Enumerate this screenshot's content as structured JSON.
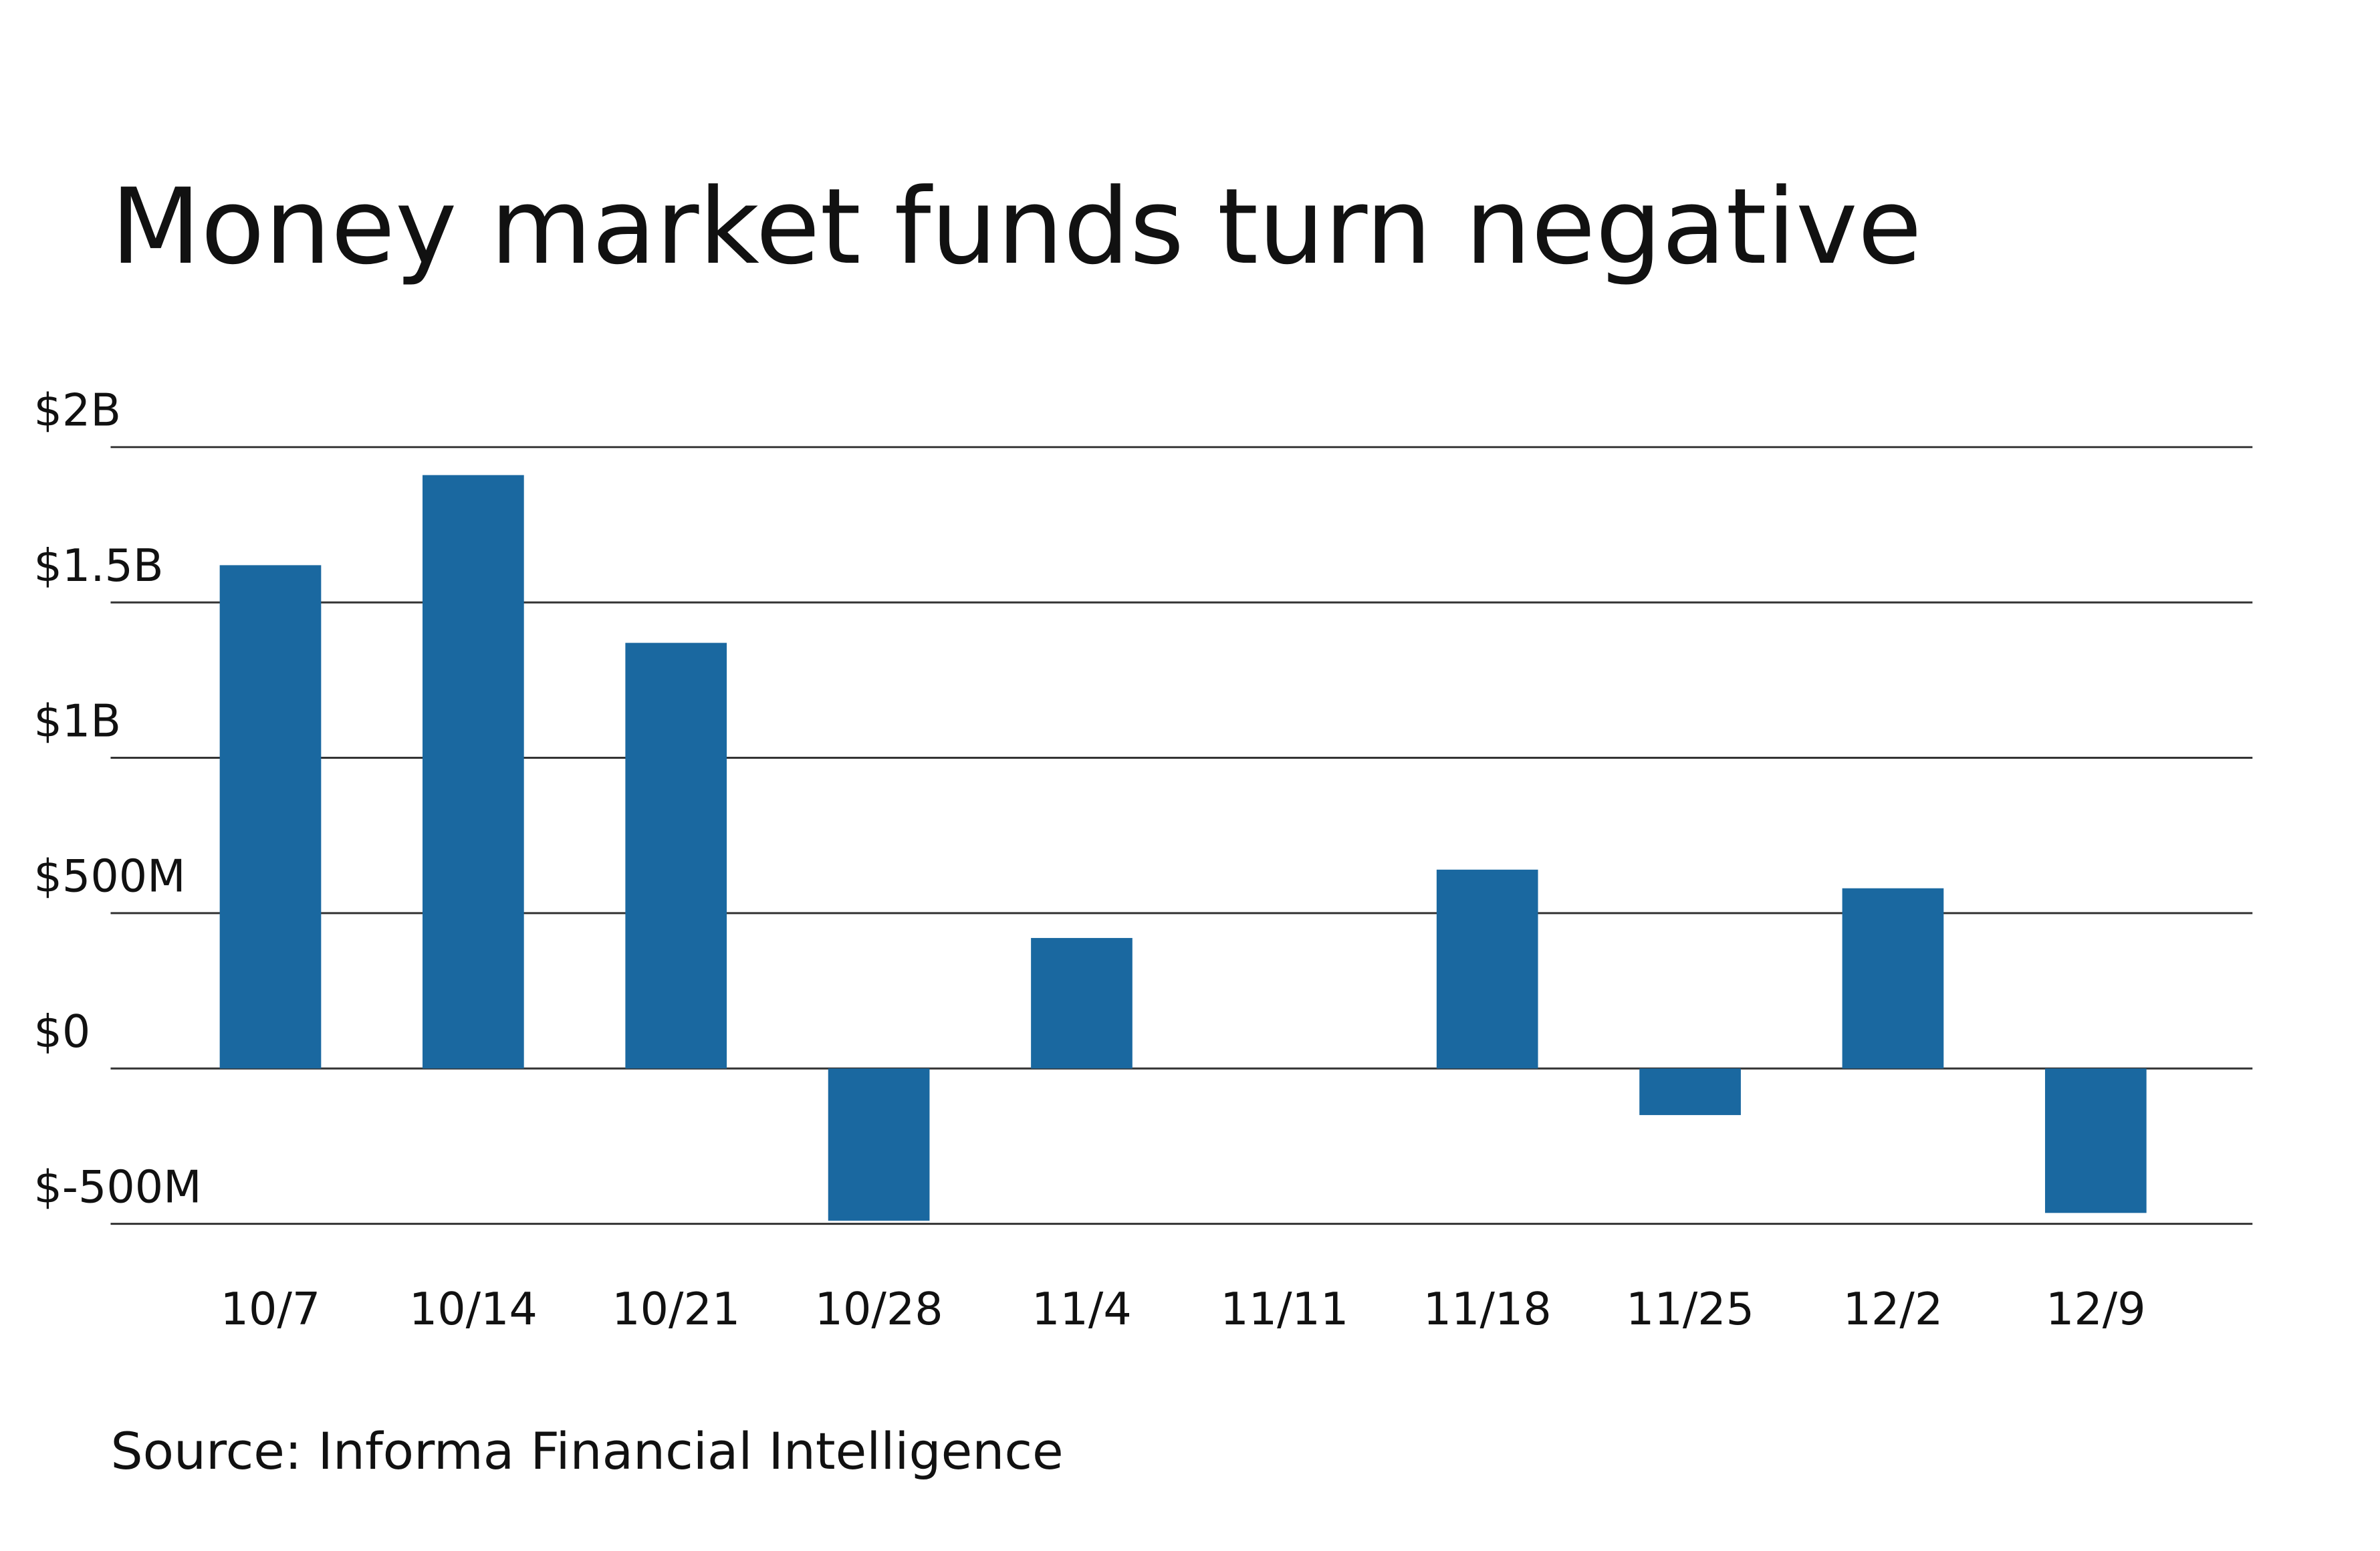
{
  "chart_data": {
    "type": "bar",
    "title": "Money market funds turn negative",
    "source": "Source: Informa Financial Intelligence",
    "categories": [
      "10/7",
      "10/14",
      "10/21",
      "10/28",
      "11/4",
      "11/11",
      "11/18",
      "11/25",
      "12/2",
      "12/9"
    ],
    "values": [
      1620,
      1910,
      1370,
      -490,
      420,
      0,
      640,
      -150,
      580,
      -465
    ],
    "color": "#1a68a0",
    "ylim": [
      -500,
      2000
    ],
    "yticks": [
      {
        "value": -500,
        "label": "$-500M"
      },
      {
        "value": 0,
        "label": "$0"
      },
      {
        "value": 500,
        "label": "$500M"
      },
      {
        "value": 1000,
        "label": "$1B"
      },
      {
        "value": 1500,
        "label": "$1.5B"
      },
      {
        "value": 2000,
        "label": "$2B"
      }
    ],
    "grid": true
  }
}
